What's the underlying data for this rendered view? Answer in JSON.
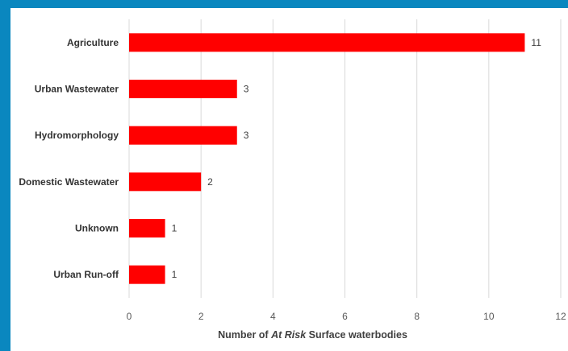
{
  "chart_data": {
    "type": "bar",
    "orientation": "horizontal",
    "categories": [
      "Agriculture",
      "Urban Wastewater",
      "Hydromorphology",
      "Domestic Wastewater",
      "Unknown",
      "Urban Run-off"
    ],
    "values": [
      11,
      3,
      3,
      2,
      1,
      1
    ],
    "xlim": [
      0,
      12
    ],
    "xticks": [
      0,
      2,
      4,
      6,
      8,
      10,
      12
    ],
    "xlabel_parts": [
      "Number of ",
      "At Risk",
      " Surface waterbodies"
    ],
    "grid": true,
    "bar_color": "#ff0000",
    "data_labels": true
  }
}
